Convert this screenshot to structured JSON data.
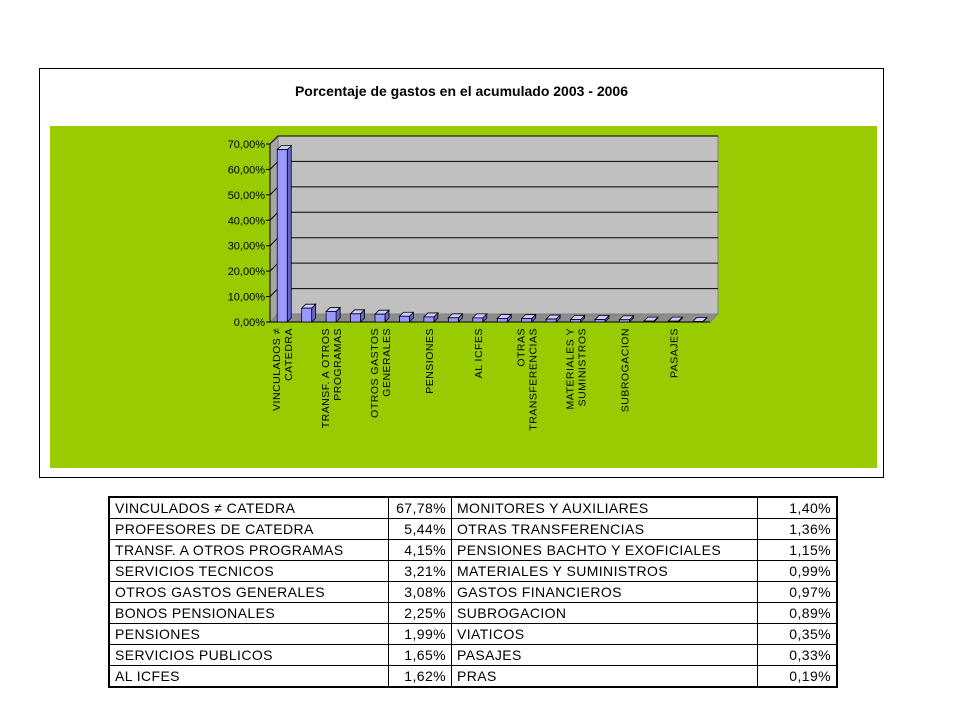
{
  "chart_data": {
    "type": "bar",
    "title": "Porcentaje de gastos en el acumulado 2003 - 2006",
    "ylim": [
      0,
      70
    ],
    "yticks": [
      "0,00%",
      "10,00%",
      "20,00%",
      "30,00%",
      "40,00%",
      "50,00%",
      "60,00%",
      "70,00%"
    ],
    "categories": [
      "VINCULADOS ≠ CATEDRA",
      "PROFESORES DE CATEDRA",
      "TRANSF. A OTROS PROGRAMAS",
      "SERVICIOS TECNICOS",
      "OTROS GASTOS GENERALES",
      "BONOS PENSIONALES",
      "PENSIONES",
      "SERVICIOS PUBLICOS",
      "AL ICFES",
      "MONITORES Y AUXILIARES",
      "OTRAS TRANSFERENCIAS",
      "PENSIONES BACHTO Y EXOFICIALES",
      "MATERIALES Y SUMINISTROS",
      "GASTOS FINANCIEROS",
      "SUBROGACION",
      "VIATICOS",
      "PASAJES",
      "PRAS"
    ],
    "values": [
      67.78,
      5.44,
      4.15,
      3.21,
      3.08,
      2.25,
      1.99,
      1.65,
      1.62,
      1.4,
      1.36,
      1.15,
      0.99,
      0.97,
      0.89,
      0.35,
      0.33,
      0.19
    ],
    "axis_labels": [
      {
        "index": 0,
        "lines": [
          "VINCULADOS ≠",
          "CATEDRA"
        ]
      },
      {
        "index": 2,
        "lines": [
          "TRANSF. A OTROS",
          "PROGRAMAS"
        ]
      },
      {
        "index": 4,
        "lines": [
          "OTROS GASTOS",
          "GENERALES"
        ]
      },
      {
        "index": 6,
        "lines": [
          "PENSIONES"
        ]
      },
      {
        "index": 8,
        "lines": [
          "AL ICFES"
        ]
      },
      {
        "index": 10,
        "lines": [
          "OTRAS",
          "TRANSFERENCIAS"
        ]
      },
      {
        "index": 12,
        "lines": [
          "MATERIALES Y",
          "SUMINISTROS"
        ]
      },
      {
        "index": 14,
        "lines": [
          "SUBROGACION"
        ]
      },
      {
        "index": 16,
        "lines": [
          "PASAJES"
        ]
      }
    ],
    "colors": {
      "plot_background": "#99CC00",
      "wall": "#C0C0C0",
      "bar_front": "#9999FF",
      "bar_top": "#CCCCFF",
      "bar_side": "#6666CC"
    },
    "legend": "none",
    "grid": true
  },
  "table": {
    "rows": [
      {
        "left_name": "VINCULADOS ≠ CATEDRA",
        "left_value": "67,78%",
        "right_name": "MONITORES Y AUXILIARES",
        "right_value": "1,40%"
      },
      {
        "left_name": "PROFESORES DE  CATEDRA",
        "left_value": "5,44%",
        "right_name": "OTRAS TRANSFERENCIAS",
        "right_value": "1,36%"
      },
      {
        "left_name": "TRANSF. A OTROS PROGRAMAS",
        "left_value": "4,15%",
        "right_name": "PENSIONES BACHTO Y EXOFICIALES",
        "right_value": "1,15%"
      },
      {
        "left_name": "SERVICIOS TECNICOS",
        "left_value": "3,21%",
        "right_name": "MATERIALES Y SUMINISTROS",
        "right_value": "0,99%"
      },
      {
        "left_name": "OTROS GASTOS GENERALES",
        "left_value": "3,08%",
        "right_name": "GASTOS FINANCIEROS",
        "right_value": "0,97%"
      },
      {
        "left_name": "BONOS PENSIONALES",
        "left_value": "2,25%",
        "right_name": "SUBROGACION",
        "right_value": "0,89%"
      },
      {
        "left_name": "PENSIONES",
        "left_value": "1,99%",
        "right_name": "VIATICOS",
        "right_value": "0,35%"
      },
      {
        "left_name": "SERVICIOS  PUBLICOS",
        "left_value": "1,65%",
        "right_name": "PASAJES",
        "right_value": "0,33%"
      },
      {
        "left_name": "AL ICFES",
        "left_value": "1,62%",
        "right_name": "PRAS",
        "right_value": "0,19%"
      }
    ]
  }
}
